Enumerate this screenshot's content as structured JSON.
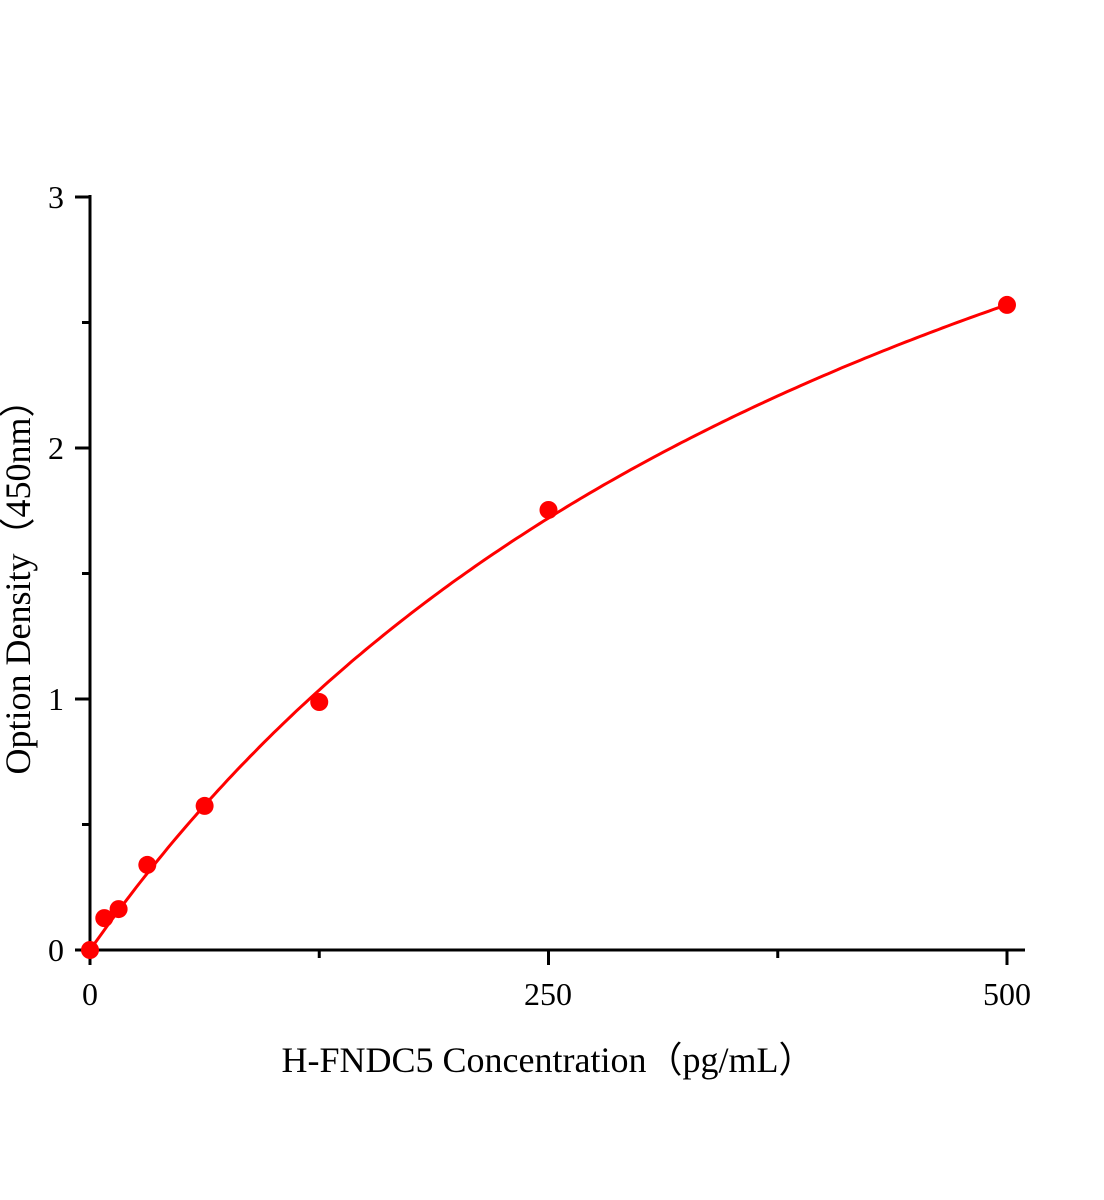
{
  "chart_data": {
    "type": "scatter",
    "title": "",
    "xlabel": "H-FNDC5 Concentration（pg/mL）",
    "ylabel": "Option Density（450nm）",
    "xlim": [
      0,
      500
    ],
    "ylim": [
      0,
      3
    ],
    "x_ticks": [
      "0",
      "250",
      "500"
    ],
    "y_ticks": [
      "0",
      "1",
      "2",
      "3"
    ],
    "grid": false,
    "legend": "none",
    "color": "#ff0000",
    "series": [
      {
        "x": [
          0,
          7.8,
          15.6,
          31.25,
          62.5,
          125,
          250,
          500
        ],
        "y": [
          0.0,
          0.127,
          0.163,
          0.339,
          0.574,
          0.988,
          1.753,
          2.57
        ],
        "fit_curve": true
      }
    ]
  }
}
